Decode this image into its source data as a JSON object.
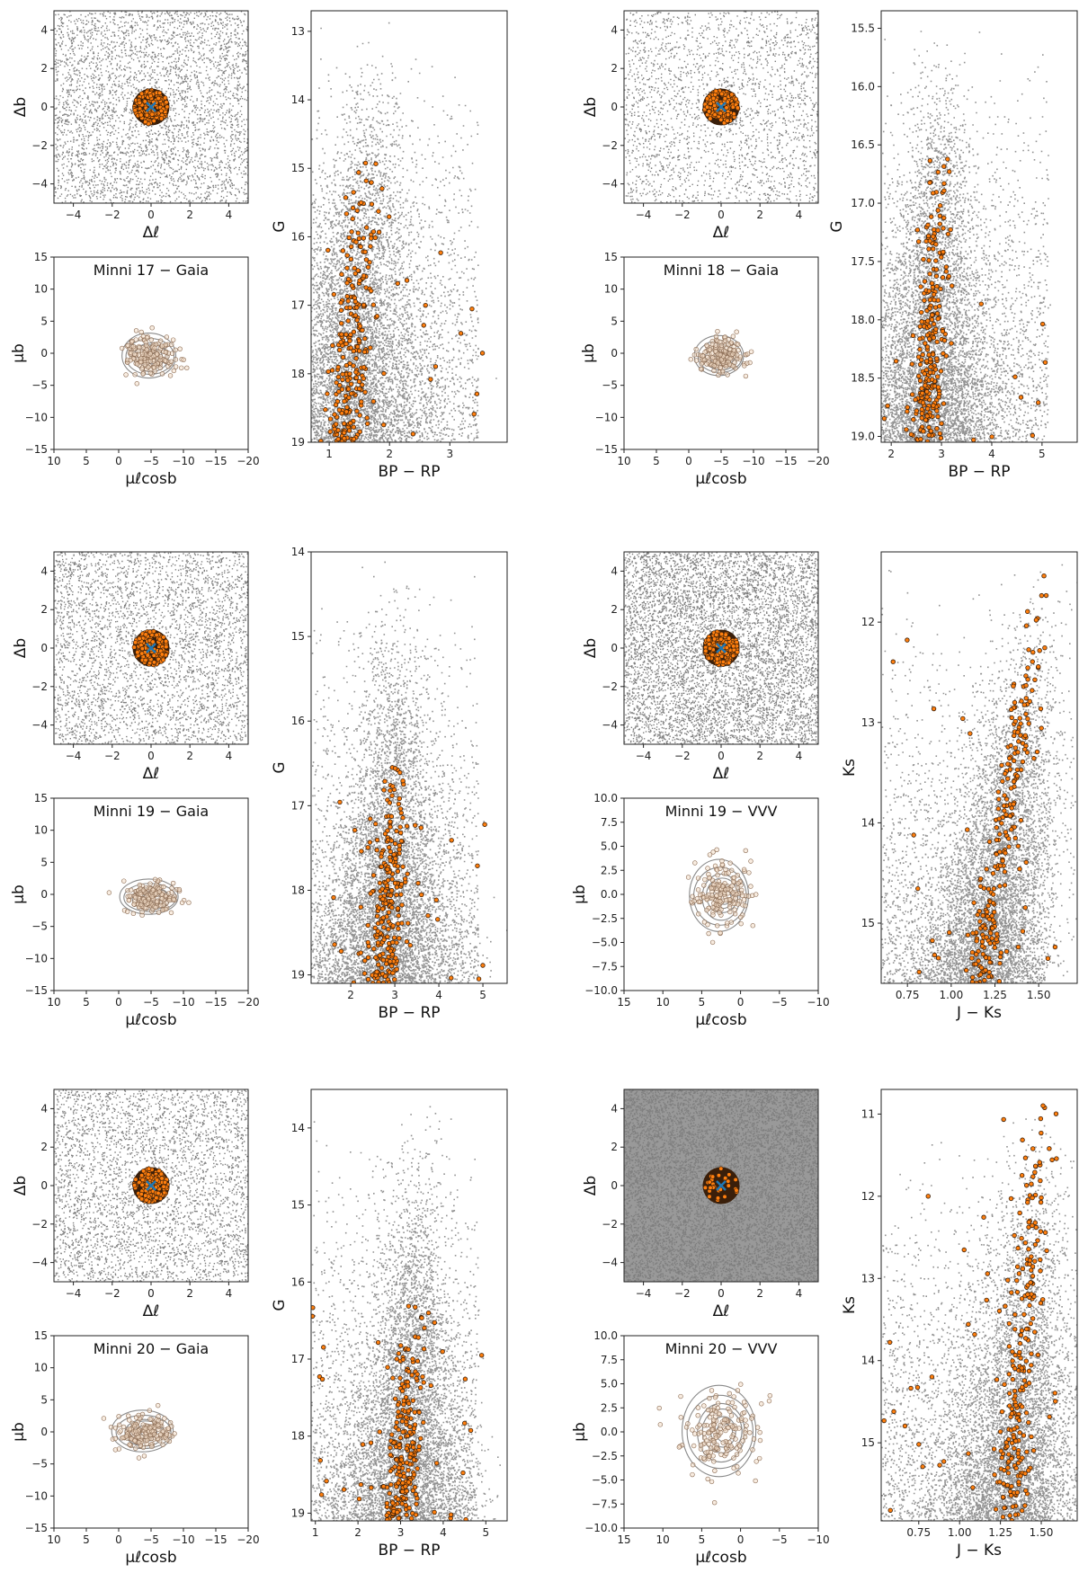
{
  "colors": {
    "field": "#7f7f7f",
    "member_fill": "#ff7f0e",
    "member_edge": "#3a1f0a",
    "center_marker": "#1f77b4",
    "contour": "#8a8a8a",
    "pm_point_fill": "#f2dcc6",
    "pm_point_edge": "#8c6d55"
  },
  "clusters": [
    {
      "label": "Minni 17",
      "sky": {
        "xlabel": "Δℓ",
        "ylabel": "Δb",
        "xlim": [
          -5,
          5
        ],
        "ylim": [
          -5,
          5
        ],
        "xticks": [
          "−4",
          "−2",
          "0",
          "2",
          "4"
        ],
        "yticks": [
          "4",
          "2",
          "0",
          "−2",
          "−4"
        ],
        "density": "medium",
        "member_radius": 0.95
      },
      "pm": {
        "title": "Minni 17  −  Gaia",
        "xlabel": "μℓcosb",
        "ylabel": "μb",
        "xlim": [
          10,
          -20
        ],
        "ylim": [
          -15,
          15
        ],
        "xticks": [
          "10",
          "5",
          "0",
          "−5",
          "−10",
          "−15",
          "−20"
        ],
        "yticks": [
          "15",
          "10",
          "5",
          "0",
          "−5",
          "−10",
          "−15"
        ],
        "center": [
          -5,
          -0.5
        ],
        "spread": [
          3.5,
          2.8
        ]
      },
      "cmd": {
        "xlabel": "BP − RP",
        "ylabel": "G",
        "xlim": [
          0.7,
          3.95
        ],
        "ylim": [
          19.0,
          12.7
        ],
        "xticks": [
          "1",
          "2",
          "3"
        ],
        "yticks": [
          "13",
          "14",
          "15",
          "16",
          "17",
          "18",
          "19"
        ],
        "sequence": {
          "top": 14.7,
          "color_top": 1.65,
          "color_bottom": 1.25,
          "width": 0.45
        }
      }
    },
    {
      "label": "Minni 18",
      "sky": {
        "xlabel": "Δℓ",
        "ylabel": "Δb",
        "xlim": [
          -5,
          5
        ],
        "ylim": [
          -5,
          5
        ],
        "xticks": [
          "−4",
          "−2",
          "0",
          "2",
          "4"
        ],
        "yticks": [
          "4",
          "2",
          "0",
          "−2",
          "−4"
        ],
        "density": "low",
        "member_radius": 0.95
      },
      "pm": {
        "title": "Minni 18  −  Gaia",
        "xlabel": "μℓcosb",
        "ylabel": "μb",
        "xlim": [
          10,
          -20
        ],
        "ylim": [
          -15,
          15
        ],
        "xticks": [
          "10",
          "5",
          "0",
          "−5",
          "−10",
          "−15",
          "−20"
        ],
        "yticks": [
          "15",
          "10",
          "5",
          "0",
          "−5",
          "−10",
          "−15"
        ],
        "center": [
          -5,
          -0.5
        ],
        "spread": [
          3.2,
          2.5
        ]
      },
      "cmd": {
        "xlabel": "BP − RP",
        "ylabel": "G",
        "xlim": [
          1.8,
          5.7
        ],
        "ylim": [
          19.05,
          15.35
        ],
        "xticks": [
          "2",
          "3",
          "4",
          "5"
        ],
        "yticks": [
          "15.5",
          "16.0",
          "16.5",
          "17.0",
          "17.5",
          "18.0",
          "18.5",
          "19.0"
        ],
        "sequence": {
          "top": 16.5,
          "color_top": 2.95,
          "color_bottom": 2.7,
          "width": 0.45
        }
      }
    },
    {
      "label": "Minni 19",
      "sky": {
        "xlabel": "Δℓ",
        "ylabel": "Δb",
        "xlim": [
          -5,
          5
        ],
        "ylim": [
          -5,
          5
        ],
        "xticks": [
          "−4",
          "−2",
          "0",
          "2",
          "4"
        ],
        "yticks": [
          "4",
          "2",
          "0",
          "−2",
          "−4"
        ],
        "density": "medium",
        "member_radius": 0.95
      },
      "pm": {
        "title": "Minni 19  −  Gaia",
        "xlabel": "μℓcosb",
        "ylabel": "μb",
        "xlim": [
          10,
          -20
        ],
        "ylim": [
          -15,
          15
        ],
        "xticks": [
          "10",
          "5",
          "0",
          "−5",
          "−10",
          "−15",
          "−20"
        ],
        "yticks": [
          "15",
          "10",
          "5",
          "0",
          "−5",
          "−10",
          "−15"
        ],
        "center": [
          -5,
          -0.5
        ],
        "spread": [
          3.8,
          2.2
        ]
      },
      "cmd": {
        "xlabel": "BP − RP",
        "ylabel": "G",
        "xlim": [
          1.1,
          5.55
        ],
        "ylim": [
          19.1,
          14.0
        ],
        "xticks": [
          "2",
          "3",
          "4",
          "5"
        ],
        "yticks": [
          "14",
          "15",
          "16",
          "17",
          "18",
          "19"
        ],
        "sequence": {
          "top": 16.4,
          "color_top": 3.0,
          "color_bottom": 2.7,
          "width": 0.55
        }
      }
    },
    {
      "label": "Minni 19",
      "sky": {
        "xlabel": "Δℓ",
        "ylabel": "Δb",
        "xlim": [
          -5,
          5
        ],
        "ylim": [
          -5,
          5
        ],
        "xticks": [
          "−4",
          "−2",
          "0",
          "2",
          "4"
        ],
        "yticks": [
          "4",
          "2",
          "0",
          "−2",
          "−4"
        ],
        "density": "high",
        "member_radius": 0.95
      },
      "pm": {
        "title": "Minni 19  −  VVV",
        "xlabel": "μℓcosb",
        "ylabel": "μb",
        "xlim": [
          15,
          -10
        ],
        "ylim": [
          -10,
          10
        ],
        "xticks": [
          "15",
          "10",
          "5",
          "0",
          "−5",
          "−10"
        ],
        "yticks": [
          "10.0",
          "7.5",
          "5.0",
          "2.5",
          "0.0",
          "−2.5",
          "−5.0",
          "−7.5",
          "−10.0"
        ],
        "center": [
          2.5,
          -0.2
        ],
        "spread": [
          3.2,
          3.0
        ]
      },
      "cmd": {
        "xlabel": "J − Ks",
        "ylabel": "Ks",
        "xlim": [
          0.6,
          1.72
        ],
        "ylim": [
          15.6,
          11.3
        ],
        "xticks": [
          "0.75",
          "1.00",
          "1.25",
          "1.50"
        ],
        "yticks": [
          "12",
          "13",
          "14",
          "15"
        ],
        "sequence": {
          "top": 11.4,
          "color_top": 1.55,
          "color_bottom": 1.15,
          "width": 0.12
        }
      }
    },
    {
      "label": "Minni 20",
      "sky": {
        "xlabel": "Δℓ",
        "ylabel": "Δb",
        "xlim": [
          -5,
          5
        ],
        "ylim": [
          -5,
          5
        ],
        "xticks": [
          "−4",
          "−2",
          "0",
          "2",
          "4"
        ],
        "yticks": [
          "4",
          "2",
          "0",
          "−2",
          "−4"
        ],
        "density": "medium",
        "member_radius": 0.95
      },
      "pm": {
        "title": "Minni 20  −  Gaia",
        "xlabel": "μℓcosb",
        "ylabel": "μb",
        "xlim": [
          10,
          -20
        ],
        "ylim": [
          -15,
          15
        ],
        "xticks": [
          "10",
          "5",
          "0",
          "−5",
          "−10",
          "−15",
          "−20"
        ],
        "yticks": [
          "15",
          "10",
          "5",
          "0",
          "−5",
          "−10",
          "−15"
        ],
        "center": [
          -4,
          0
        ],
        "spread": [
          4.0,
          2.6
        ]
      },
      "cmd": {
        "xlabel": "BP − RP",
        "ylabel": "G",
        "xlim": [
          0.9,
          5.5
        ],
        "ylim": [
          19.1,
          13.5
        ],
        "xticks": [
          "1",
          "2",
          "3",
          "4",
          "5"
        ],
        "yticks": [
          "14",
          "15",
          "16",
          "17",
          "18",
          "19"
        ],
        "sequence": {
          "top": 16.3,
          "color_top": 3.3,
          "color_bottom": 3.0,
          "width": 0.55
        }
      }
    },
    {
      "label": "Minni 20",
      "sky": {
        "xlabel": "Δℓ",
        "ylabel": "Δb",
        "xlim": [
          -5,
          5
        ],
        "ylim": [
          -5,
          5
        ],
        "xticks": [
          "−4",
          "−2",
          "0",
          "2",
          "4"
        ],
        "yticks": [
          "4",
          "2",
          "0",
          "−2",
          "−4"
        ],
        "density": "very-high",
        "member_radius": 0.95
      },
      "pm": {
        "title": "Minni 20  −  VVV",
        "xlabel": "μℓcosb",
        "ylabel": "μb",
        "xlim": [
          15,
          -10
        ],
        "ylim": [
          -10,
          10
        ],
        "xticks": [
          "15",
          "10",
          "5",
          "0",
          "−5",
          "−10"
        ],
        "yticks": [
          "10.0",
          "7.5",
          "5.0",
          "2.5",
          "0.0",
          "−2.5",
          "−5.0",
          "−7.5",
          "−10.0"
        ],
        "center": [
          2.5,
          0
        ],
        "spread": [
          4.0,
          3.8
        ]
      },
      "cmd": {
        "xlabel": "J − Ks",
        "ylabel": "Ks",
        "xlim": [
          0.52,
          1.72
        ],
        "ylim": [
          15.95,
          10.7
        ],
        "xticks": [
          "0.75",
          "1.00",
          "1.25",
          "1.50"
        ],
        "yticks": [
          "11",
          "12",
          "13",
          "14",
          "15"
        ],
        "sequence": {
          "top": 10.8,
          "color_top": 1.5,
          "color_bottom": 1.3,
          "width": 0.15
        }
      }
    }
  ]
}
